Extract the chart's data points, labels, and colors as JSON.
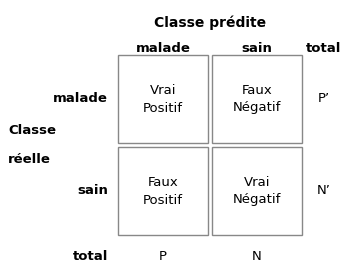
{
  "title": "Classe prédite",
  "col_labels": [
    "malade",
    "sain",
    "total"
  ],
  "row_labels": [
    "malade",
    "sain",
    "total"
  ],
  "left_label_line1": "Classe",
  "left_label_line2": "réelle",
  "cells": [
    [
      "Vrai\nPositif",
      "Faux\nNégatif",
      "P’"
    ],
    [
      "Faux\nPositif",
      "Vrai\nNégatif",
      "N’"
    ],
    [
      "P",
      "N",
      ""
    ]
  ],
  "bg_color": "#ffffff",
  "box_edge_color": "#888888",
  "text_color": "#000000",
  "title_fontsize": 10,
  "header_fontsize": 9.5,
  "cell_fontsize": 9.5,
  "label_fontsize": 9.5,
  "fig_width": 3.49,
  "fig_height": 2.79,
  "dpi": 100
}
